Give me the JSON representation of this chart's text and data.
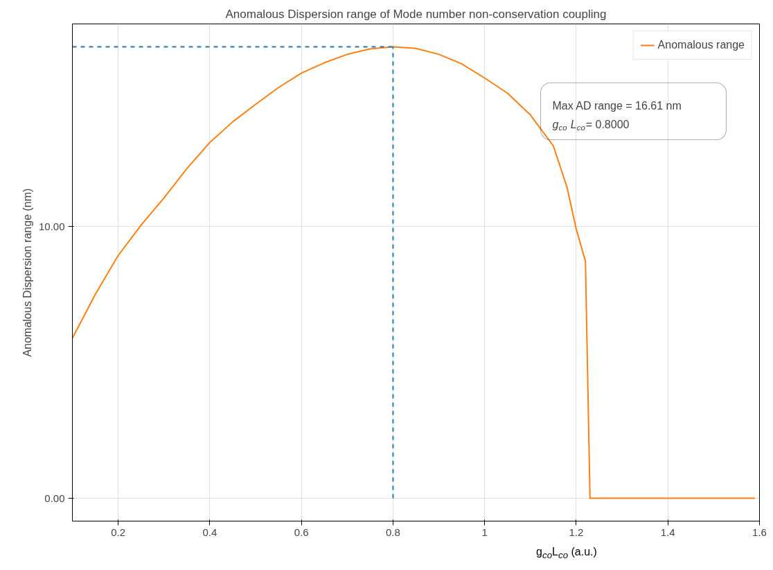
{
  "chart_data": {
    "type": "line",
    "title": "Anomalous Dispersion range of Mode number non-conservation coupling",
    "xlabel": "g$_{co}$L$_{co}$ (a.u.)",
    "ylabel": "Anomalous Dispersion range (nm)",
    "xlim": [
      0.1,
      1.6
    ],
    "xticks": [
      0.2,
      0.4,
      0.6,
      0.8,
      1.0,
      1.2,
      1.4,
      1.6
    ],
    "ylim": [
      -0.84,
      17.45
    ],
    "yticks": [
      {
        "value": 0,
        "label": "0.00"
      },
      {
        "value": 10,
        "label": "10.00"
      }
    ],
    "grid": true,
    "legend": "top right",
    "annotations": [
      "Max AD range = 16.61 nm",
      "g$_{co}$ L$_{co}$= 0.8000"
    ],
    "series": [
      {
        "name": "Anomalous range",
        "color": "#ff7f0e",
        "x": [
          0.1,
          0.15,
          0.2,
          0.25,
          0.3,
          0.35,
          0.4,
          0.45,
          0.5,
          0.55,
          0.6,
          0.65,
          0.7,
          0.75,
          0.8,
          0.85,
          0.9,
          0.95,
          1.0,
          1.05,
          1.1,
          1.15,
          1.18,
          1.2,
          1.22,
          1.23,
          1.4,
          1.59
        ],
        "values": [
          5.89,
          7.5,
          8.93,
          10.05,
          11.05,
          12.13,
          13.09,
          13.85,
          14.49,
          15.11,
          15.64,
          16.02,
          16.33,
          16.53,
          16.61,
          16.55,
          16.33,
          15.98,
          15.46,
          14.9,
          14.1,
          12.96,
          11.43,
          9.9,
          8.72,
          0,
          0,
          0
        ]
      },
      {
        "color": "#1f77b4",
        "line_style": "dashed",
        "x": [
          0.1,
          0.8
        ],
        "values": [
          16.61,
          16.61
        ]
      },
      {
        "color": "#1f77b4",
        "line_style": "dashed",
        "x": [
          0.8,
          0.8
        ],
        "values": [
          0,
          16.61
        ]
      }
    ]
  }
}
